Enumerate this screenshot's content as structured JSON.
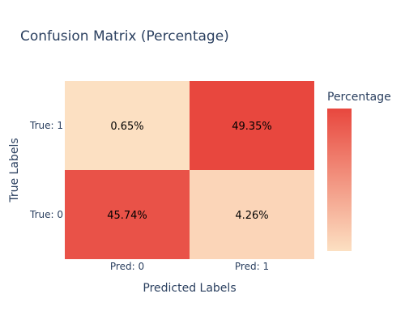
{
  "chart_data": {
    "type": "heatmap",
    "title": "Confusion Matrix (Percentage)",
    "xlabel": "Predicted Labels",
    "ylabel": "True Labels",
    "x_categories": [
      "Pred: 0",
      "Pred: 1"
    ],
    "y_categories": [
      "True: 0",
      "True: 1"
    ],
    "values": [
      [
        45.74,
        4.26
      ],
      [
        0.65,
        49.35
      ]
    ],
    "cell_labels": [
      [
        "45.74%",
        "4.26%"
      ],
      [
        "0.65%",
        "49.35%"
      ]
    ],
    "colorbar": {
      "title": "Percentage",
      "colors": [
        "#fce0c2",
        "#e8473e"
      ],
      "position": "right"
    }
  }
}
